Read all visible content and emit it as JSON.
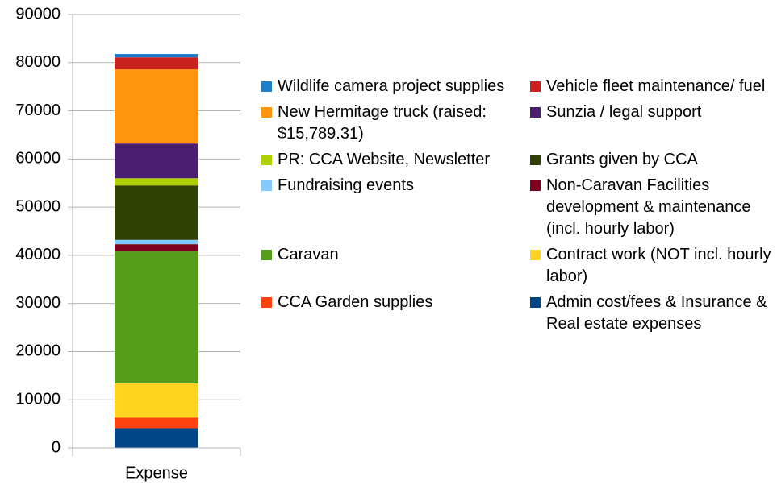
{
  "chart_data": {
    "type": "bar",
    "stacked": true,
    "categories": [
      "Expense"
    ],
    "series": [
      {
        "name": "Wildlife camera project supplies",
        "color": "#1f7fc8",
        "values": [
          700
        ]
      },
      {
        "name": "Vehicle fleet maintenance/ fuel",
        "color": "#c9211e",
        "values": [
          2500
        ]
      },
      {
        "name": "New Hermitage truck (raised: $15,789.31)",
        "color": "#ff950e",
        "values": [
          15400
        ]
      },
      {
        "name": "Sunzia / legal support",
        "color": "#4b1f6f",
        "values": [
          7200
        ]
      },
      {
        "name": "PR: CCA Website, Newsletter",
        "color": "#aecf00",
        "values": [
          1500
        ]
      },
      {
        "name": "Grants given by CCA",
        "color": "#314004",
        "values": [
          11300
        ]
      },
      {
        "name": "Fundraising events",
        "color": "#83caff",
        "values": [
          900
        ]
      },
      {
        "name": "Non-Caravan Facilities development & maintenance (incl. hourly labor)",
        "color": "#7e0021",
        "values": [
          1500
        ]
      },
      {
        "name": "Caravan",
        "color": "#579d1c",
        "values": [
          27400
        ]
      },
      {
        "name": "Contract work (NOT incl. hourly labor)",
        "color": "#ffd320",
        "values": [
          7100
        ]
      },
      {
        "name": "CCA Garden supplies",
        "color": "#ff420e",
        "values": [
          2200
        ]
      },
      {
        "name": "Admin cost/fees & Insurance & Real estate expenses",
        "color": "#004586",
        "values": [
          4100
        ]
      }
    ],
    "ylim": [
      0,
      90000
    ],
    "yticks": [
      0,
      10000,
      20000,
      30000,
      40000,
      50000,
      60000,
      70000,
      80000,
      90000
    ],
    "grid": true,
    "legend": "right"
  }
}
